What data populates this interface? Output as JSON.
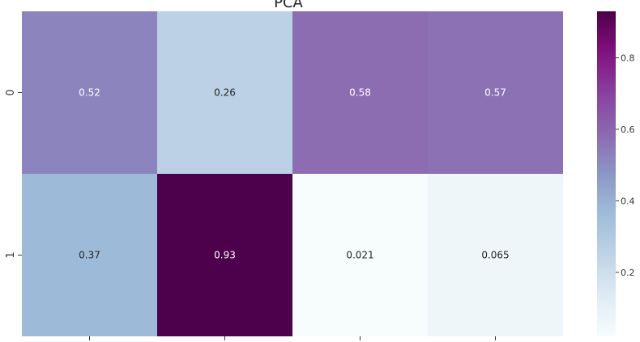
{
  "chart_data": {
    "type": "heatmap",
    "title": "PCA",
    "rows": [
      "0",
      "1"
    ],
    "columns": [
      "",
      "",
      "",
      ""
    ],
    "values": [
      [
        0.52,
        0.26,
        0.58,
        0.57
      ],
      [
        0.37,
        0.93,
        0.021,
        0.065
      ]
    ],
    "cell_labels": [
      [
        "0.52",
        "0.26",
        "0.58",
        "0.57"
      ],
      [
        "0.37",
        "0.93",
        "0.021",
        "0.065"
      ]
    ],
    "colormap": "BuPu",
    "vmin": 0.021,
    "vmax": 0.93,
    "colorbar": {
      "ticks": [
        0.2,
        0.4,
        0.6,
        0.8
      ],
      "tick_labels": [
        "0.2",
        "0.4",
        "0.6",
        "0.8"
      ],
      "position": "right"
    },
    "grid": false,
    "legend": "colorbar right"
  }
}
